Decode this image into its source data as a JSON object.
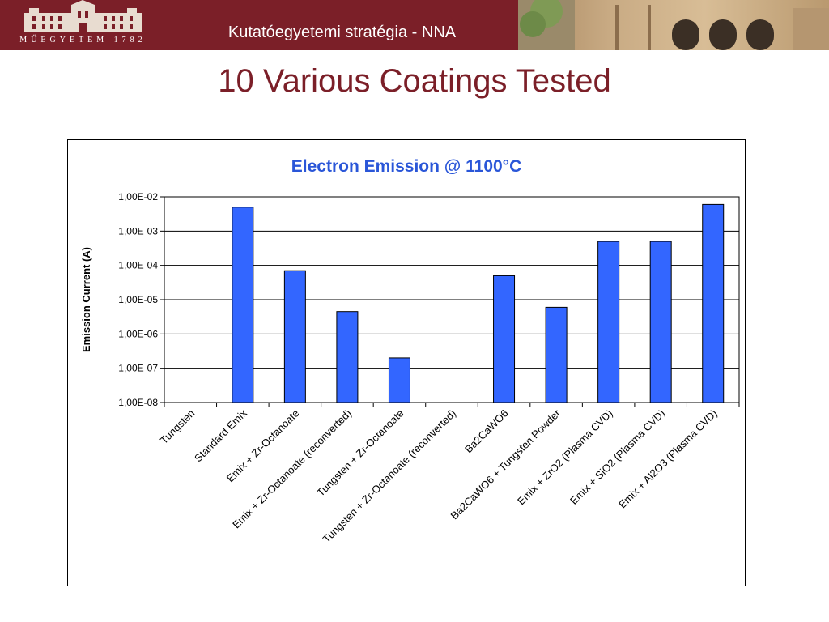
{
  "header": {
    "logo_text": "MŰEGYETEM 1782",
    "title": "Kutatóegyetemi stratégia - NNA"
  },
  "slide": {
    "title": "10 Various Coatings Tested"
  },
  "colors": {
    "brand": "#7b1f28",
    "bar": "#3366ff",
    "chart_title": "#2a56d8"
  },
  "chart_data": {
    "type": "bar",
    "title": "Electron Emission @ 1100°C",
    "xlabel": "",
    "ylabel": "Emission Current (A)",
    "yscale": "log",
    "ylim": [
      1e-08,
      0.01
    ],
    "yticks": [
      1e-08,
      1e-07,
      1e-06,
      1e-05,
      0.0001,
      0.001,
      0.01
    ],
    "ytick_labels": [
      "1,00E-08",
      "1,00E-07",
      "1,00E-06",
      "1,00E-05",
      "1,00E-04",
      "1,00E-03",
      "1,00E-02"
    ],
    "grid": "horizontal",
    "categories": [
      "Tungsten",
      "Standard Emix",
      "Emix + Zr-Octanoate",
      "Emix + Zr-Octanoate (reconverted)",
      "Tungsten + Zr-Octanoate",
      "Tungsten + Zr-Octanoate (reconverted)",
      "Ba2CaWO6",
      "Ba2CaWO6 + Tungsten Powder",
      "Emix + ZrO2 (Plasma CVD)",
      "Emix + SiO2 (Plasma CVD)",
      "Emix + Al2O3 (Plasma CVD)"
    ],
    "values": [
      null,
      0.005,
      7e-05,
      4.5e-06,
      2e-07,
      null,
      5e-05,
      6e-06,
      0.0005,
      0.0005,
      0.006
    ]
  }
}
